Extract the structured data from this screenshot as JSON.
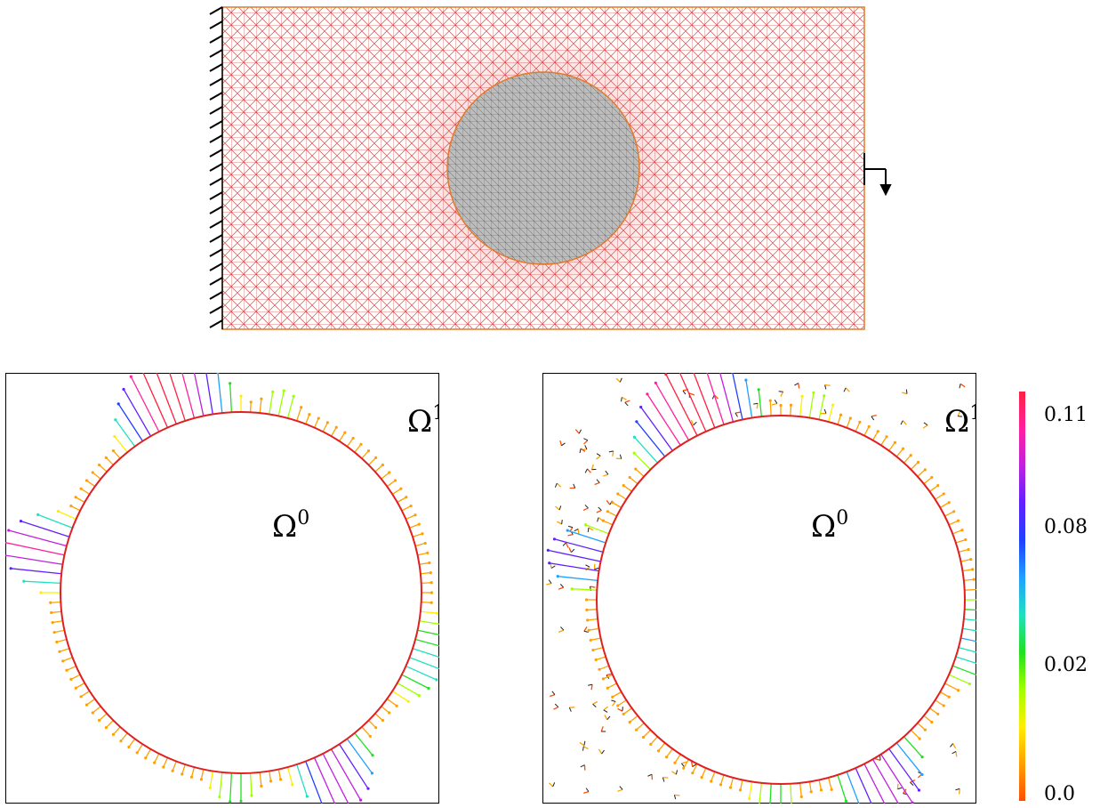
{
  "mesh_figure": {
    "mesh_color": "#d64c4c",
    "inclusion_color": "#9a9a9a",
    "boundary_color": "#e07a2a"
  },
  "panels": [
    {
      "subdomain_outer": "Ω",
      "subdomain_outer_sup": "1",
      "subdomain_inner": "Ω",
      "subdomain_inner_sup": "0"
    },
    {
      "subdomain_outer": "Ω",
      "subdomain_outer_sup": "1",
      "subdomain_inner": "Ω",
      "subdomain_inner_sup": "0"
    }
  ],
  "colorbar": {
    "ticks": [
      "0.11",
      "0.08",
      "0.02",
      "0.0"
    ],
    "tick_values": [
      0.11,
      0.08,
      0.02,
      0.0
    ],
    "colors": [
      "#ff4d00",
      "#ffa000",
      "#ffee00",
      "#a0ff00",
      "#20e020",
      "#20e0c0",
      "#20a0ff",
      "#2040ff",
      "#6020ff",
      "#c020e0",
      "#ff20a0",
      "#ff2040"
    ]
  }
}
